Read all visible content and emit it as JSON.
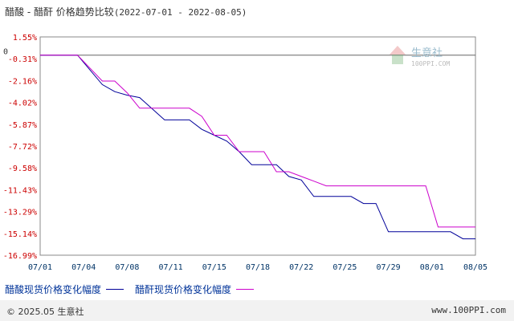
{
  "header": {
    "title_products": "醋酸 - 醋酐",
    "title_label": "价格趋势比较",
    "title_range": "(2022-07-01 - 2022-08-05)"
  },
  "watermark": {
    "brand": "生意社",
    "url": "100PPI.COM"
  },
  "footer": {
    "copyright": "© 2025.05 生意社",
    "site": "www.100PPI.com"
  },
  "chart_data": {
    "type": "line",
    "title": "醋酸 - 醋酐 价格趋势比较(2022-07-01 - 2022-08-05)",
    "zero_label": "0",
    "y_ticks": [
      "1.55%",
      "-0.31%",
      "-2.16%",
      "-4.02%",
      "-5.87%",
      "-7.72%",
      "-9.58%",
      "-11.43%",
      "-13.29%",
      "-15.14%",
      "-16.99%"
    ],
    "x_ticks": [
      "07/01",
      "07/04",
      "07/08",
      "07/11",
      "07/15",
      "07/18",
      "07/22",
      "07/25",
      "07/29",
      "08/01",
      "08/05"
    ],
    "ylim": [
      -16.99,
      1.55
    ],
    "xlim": [
      0,
      35
    ],
    "series": [
      {
        "name": "醋酸现货价格变化幅度",
        "color": "#000099",
        "x": [
          0,
          3,
          5,
          6,
          7,
          8,
          10,
          11,
          12,
          13,
          14,
          15,
          16,
          17,
          18,
          19,
          20,
          21,
          22,
          23,
          24,
          25,
          26,
          27,
          28,
          29,
          30,
          31,
          32,
          33,
          34,
          35
        ],
        "y": [
          0,
          0,
          -2.5,
          -3.1,
          -3.4,
          -3.6,
          -5.5,
          -5.5,
          -5.5,
          -6.3,
          -6.8,
          -7.3,
          -8.2,
          -9.3,
          -9.3,
          -9.3,
          -10.3,
          -10.6,
          -12.0,
          -12.0,
          -12.0,
          -12.0,
          -12.6,
          -12.6,
          -15.0,
          -15.0,
          -15.0,
          -15.0,
          -15.0,
          -15.0,
          -15.6,
          -15.6
        ]
      },
      {
        "name": "醋酐现货价格变化幅度",
        "color": "#cc00cc",
        "x": [
          0,
          3,
          5,
          6,
          7,
          8,
          10,
          11,
          12,
          13,
          14,
          15,
          16,
          17,
          18,
          19,
          20,
          21,
          22,
          23,
          24,
          25,
          26,
          27,
          28,
          29,
          30,
          31,
          32,
          33,
          34,
          35
        ],
        "y": [
          0,
          0,
          -2.2,
          -2.2,
          -3.2,
          -4.5,
          -4.5,
          -4.5,
          -4.5,
          -5.2,
          -6.8,
          -6.8,
          -8.2,
          -8.2,
          -8.2,
          -9.9,
          -9.9,
          -10.3,
          -10.7,
          -11.1,
          -11.1,
          -11.1,
          -11.1,
          -11.1,
          -11.1,
          -11.1,
          -11.1,
          -11.1,
          -14.6,
          -14.6,
          -14.6,
          -14.6
        ]
      }
    ],
    "grid": true,
    "legend_position": "bottom-left"
  }
}
